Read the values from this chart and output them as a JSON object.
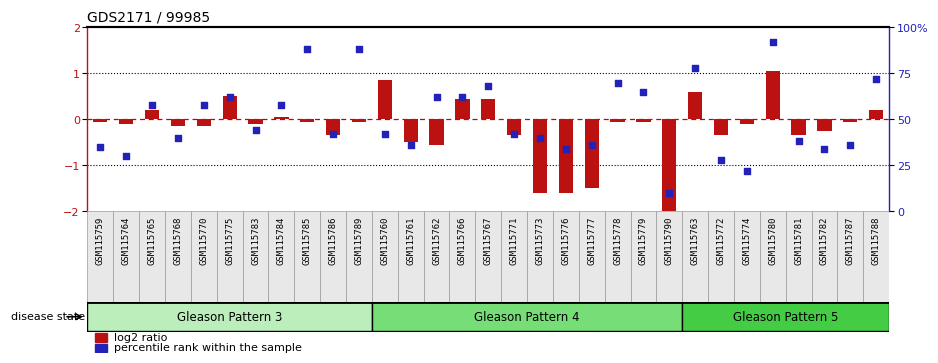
{
  "title": "GDS2171 / 99985",
  "samples": [
    "GSM115759",
    "GSM115764",
    "GSM115765",
    "GSM115768",
    "GSM115770",
    "GSM115775",
    "GSM115783",
    "GSM115784",
    "GSM115785",
    "GSM115786",
    "GSM115789",
    "GSM115760",
    "GSM115761",
    "GSM115762",
    "GSM115766",
    "GSM115767",
    "GSM115771",
    "GSM115773",
    "GSM115776",
    "GSM115777",
    "GSM115778",
    "GSM115779",
    "GSM115790",
    "GSM115763",
    "GSM115772",
    "GSM115774",
    "GSM115780",
    "GSM115781",
    "GSM115782",
    "GSM115787",
    "GSM115788"
  ],
  "log2_ratio": [
    -0.05,
    -0.1,
    0.2,
    -0.15,
    -0.15,
    0.5,
    -0.1,
    0.05,
    -0.05,
    -0.35,
    -0.05,
    0.85,
    -0.5,
    -0.55,
    0.45,
    0.45,
    -0.35,
    -1.6,
    -1.6,
    -1.5,
    -0.05,
    -0.05,
    -2.0,
    0.6,
    -0.35,
    -0.1,
    1.05,
    -0.35,
    -0.25,
    -0.05,
    0.2
  ],
  "percentile": [
    35,
    30,
    58,
    40,
    58,
    62,
    44,
    58,
    88,
    42,
    88,
    42,
    36,
    62,
    62,
    68,
    42,
    40,
    34,
    36,
    70,
    65,
    10,
    78,
    28,
    22,
    92,
    38,
    34,
    36,
    72
  ],
  "groups": [
    {
      "label": "Gleason Pattern 3",
      "start": 0,
      "end": 10,
      "color": "#BBEEAA"
    },
    {
      "label": "Gleason Pattern 4",
      "start": 11,
      "end": 22,
      "color": "#77DD77"
    },
    {
      "label": "Gleason Pattern 5",
      "start": 23,
      "end": 30,
      "color": "#44CC44"
    }
  ],
  "ylim": [
    -2,
    2
  ],
  "y2lim": [
    0,
    100
  ],
  "yticks_left": [
    -2,
    -1,
    0,
    1,
    2
  ],
  "yticks_right": [
    0,
    25,
    50,
    75,
    100
  ],
  "ytick_right_labels": [
    "0",
    "25",
    "50",
    "75",
    "100%"
  ],
  "bar_color": "#BB1111",
  "dot_color": "#2222BB",
  "hline_color": "#CC0000",
  "dotted_color": "#000000",
  "legend_bar_label": "log2 ratio",
  "legend_dot_label": "percentile rank within the sample",
  "disease_state_label": "disease state"
}
